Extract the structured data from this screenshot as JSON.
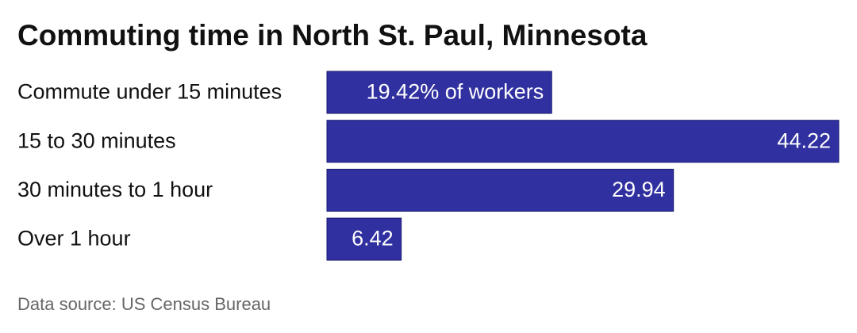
{
  "chart_data": {
    "type": "hbar",
    "title": "Commuting time in North St. Paul, Minnesota",
    "categories": [
      "Commute under 15 minutes",
      "15 to 30 minutes",
      "30 minutes to 1 hour",
      "Over 1 hour"
    ],
    "values": [
      19.42,
      44.22,
      29.94,
      6.42
    ],
    "value_labels": [
      "19.42% of workers",
      "44.22",
      "29.94",
      "6.42"
    ],
    "color": "#3030a0",
    "source": "Data source: US Census Bureau"
  }
}
